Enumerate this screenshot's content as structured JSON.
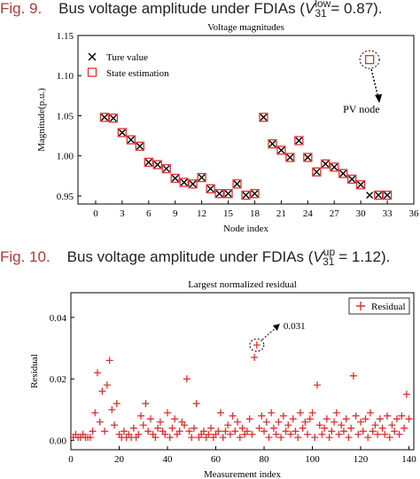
{
  "captions": [
    {
      "figno": "Fig. 9.",
      "text": "Bus voltage amplitude under FDIAs (",
      "var": "V",
      "sup": "low",
      "sub": "31",
      "tail": " = 0.87)."
    },
    {
      "figno": "Fig. 10.",
      "text": "Bus voltage amplitude under FDIAs (",
      "var": "V",
      "sup": "up",
      "sub": "31",
      "tail": " = 1.12)."
    }
  ],
  "chart_data": [
    {
      "type": "scatter",
      "title": "Voltage magnitudes",
      "xlabel": "Node index",
      "ylabel": "Magnitude(p.u.)",
      "xlim": [
        -2,
        36
      ],
      "ylim": [
        0.94,
        1.15
      ],
      "xticks": [
        0,
        3,
        6,
        9,
        12,
        15,
        18,
        21,
        24,
        27,
        30,
        33,
        36
      ],
      "yticks": [
        0.95,
        1.0,
        1.05,
        1.1,
        1.15
      ],
      "grid": false,
      "legend_position": "top-left",
      "series": [
        {
          "name": "Ture value",
          "marker": "x",
          "color": "#000000",
          "x": [
            1,
            2,
            3,
            4,
            5,
            6,
            7,
            8,
            9,
            10,
            11,
            12,
            13,
            14,
            15,
            16,
            17,
            18,
            19,
            20,
            21,
            22,
            23,
            24,
            25,
            26,
            27,
            28,
            29,
            30,
            31,
            32,
            33
          ],
          "y": [
            1.048,
            1.047,
            1.029,
            1.02,
            1.012,
            0.992,
            0.989,
            0.984,
            0.972,
            0.967,
            0.965,
            0.973,
            0.959,
            0.953,
            0.953,
            0.965,
            0.951,
            0.953,
            1.048,
            1.015,
            1.007,
            0.998,
            1.019,
            0.998,
            0.98,
            0.99,
            0.986,
            0.978,
            0.971,
            0.964,
            0.951,
            0.951,
            0.951
          ]
        },
        {
          "name": "State estimation",
          "marker": "square",
          "color": "#e03030",
          "x": [
            1,
            2,
            3,
            4,
            5,
            6,
            7,
            8,
            9,
            10,
            11,
            12,
            13,
            14,
            15,
            16,
            17,
            18,
            19,
            20,
            21,
            22,
            23,
            24,
            25,
            26,
            27,
            28,
            29,
            30,
            31,
            32,
            33
          ],
          "y": [
            1.048,
            1.047,
            1.029,
            1.02,
            1.012,
            0.992,
            0.989,
            0.984,
            0.972,
            0.967,
            0.965,
            0.973,
            0.959,
            0.953,
            0.953,
            0.965,
            0.951,
            0.953,
            1.048,
            1.015,
            1.007,
            0.998,
            1.019,
            0.998,
            0.98,
            0.99,
            0.986,
            0.978,
            0.971,
            0.964,
            1.12,
            0.951,
            0.951
          ]
        }
      ],
      "annotations": [
        {
          "text": "PV node",
          "x": 31,
          "y": 1.12
        }
      ]
    },
    {
      "type": "scatter",
      "title": "Largest normalized residual",
      "xlabel": "Measurement index",
      "ylabel": "Residual",
      "xlim": [
        0,
        142
      ],
      "ylim": [
        -0.003,
        0.048
      ],
      "xticks": [
        0,
        20,
        40,
        60,
        80,
        100,
        120,
        140
      ],
      "yticks": [
        0.0,
        0.02,
        0.04
      ],
      "ytick_labels": [
        "0.00",
        "0.02",
        "0.04"
      ],
      "grid": false,
      "legend_position": "top-right",
      "series": [
        {
          "name": "Residual",
          "marker": "+",
          "color": "#e03030",
          "x": [
            1,
            2,
            3,
            4,
            5,
            6,
            7,
            8,
            9,
            10,
            11,
            12,
            13,
            14,
            15,
            16,
            17,
            18,
            19,
            20,
            21,
            22,
            23,
            24,
            25,
            26,
            27,
            28,
            29,
            30,
            31,
            32,
            33,
            34,
            35,
            36,
            37,
            38,
            39,
            40,
            41,
            42,
            43,
            44,
            45,
            46,
            47,
            48,
            49,
            50,
            51,
            52,
            53,
            54,
            55,
            56,
            57,
            58,
            59,
            60,
            61,
            62,
            63,
            64,
            65,
            66,
            67,
            68,
            69,
            70,
            71,
            72,
            73,
            74,
            75,
            76,
            77,
            78,
            79,
            80,
            81,
            82,
            83,
            84,
            85,
            86,
            87,
            88,
            89,
            90,
            91,
            92,
            93,
            94,
            95,
            96,
            97,
            98,
            99,
            100,
            101,
            102,
            103,
            104,
            105,
            106,
            107,
            108,
            109,
            110,
            111,
            112,
            113,
            114,
            115,
            116,
            117,
            118,
            119,
            120,
            121,
            122,
            123,
            124,
            125,
            126,
            127,
            128,
            129,
            130,
            131,
            132,
            133,
            134,
            135,
            136,
            137,
            138,
            139,
            140
          ],
          "y": [
            0.001,
            0.002,
            0.001,
            0.001,
            0.002,
            0.001,
            0.001,
            0.001,
            0.003,
            0.009,
            0.022,
            0.006,
            0.016,
            0.003,
            0.018,
            0.026,
            0.01,
            0.005,
            0.012,
            0.002,
            0.001,
            0.003,
            0.001,
            0.002,
            0.001,
            0.004,
            0.001,
            0.002,
            0.008,
            0.005,
            0.012,
            0.003,
            0.007,
            0.002,
            0.001,
            0.004,
            0.006,
            0.003,
            0.002,
            0.009,
            0.001,
            0.004,
            0.007,
            0.002,
            0.003,
            0.006,
            0.005,
            0.02,
            0.003,
            0.001,
            0.004,
            0.012,
            0.001,
            0.002,
            0.003,
            0.001,
            0.002,
            0.004,
            0.001,
            0.002,
            0.003,
            0.009,
            0.001,
            0.003,
            0.005,
            0.002,
            0.008,
            0.003,
            0.006,
            0.001,
            0.004,
            0.002,
            0.003,
            0.007,
            0.002,
            0.027,
            0.031,
            0.004,
            0.008,
            0.003,
            0.006,
            0.001,
            0.009,
            0.004,
            0.002,
            0.006,
            0.001,
            0.008,
            0.003,
            0.005,
            0.002,
            0.007,
            0.003,
            0.001,
            0.009,
            0.004,
            0.006,
            0.002,
            0.007,
            0.009,
            0.001,
            0.018,
            0.005,
            0.002,
            0.004,
            0.007,
            0.001,
            0.003,
            0.006,
            0.009,
            0.002,
            0.005,
            0.003,
            0.007,
            0.001,
            0.004,
            0.021,
            0.008,
            0.002,
            0.006,
            0.003,
            0.007,
            0.001,
            0.009,
            0.003,
            0.005,
            0.002,
            0.007,
            0.004,
            0.002,
            0.008,
            0.001,
            0.005,
            0.003,
            0.007,
            0.002,
            0.008,
            0.004,
            0.015,
            0.007
          ]
        }
      ],
      "annotations": [
        {
          "text": "0.031",
          "x": 77,
          "y": 0.031
        }
      ]
    }
  ]
}
